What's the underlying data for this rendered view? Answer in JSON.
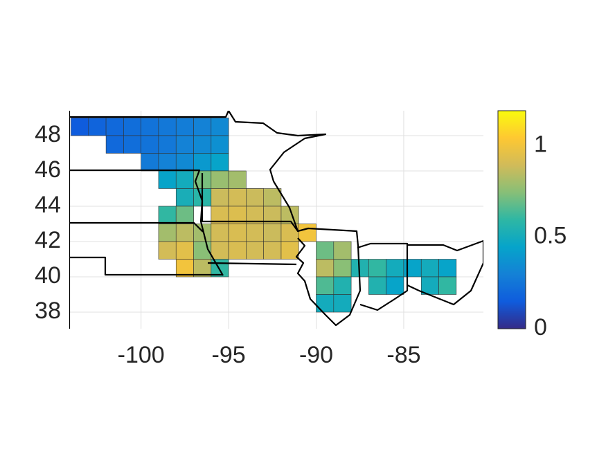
{
  "chart_data": {
    "type": "choropleth",
    "x": [
      -103.5,
      -102.5,
      -101.5,
      -100.5,
      -99.5,
      -98.5,
      -97.5,
      -101.5,
      -100.5,
      -99.5,
      -98.5,
      -97.5,
      -99.5,
      -98.5,
      -97.5,
      -96.5,
      -95.5,
      -96.5,
      -95.5,
      -96.5,
      -95.5,
      -98.5,
      -97.5,
      -97.5,
      -96.5,
      -98.5,
      -97.5,
      -97.5,
      -96.5,
      -95.5,
      -94.5,
      -93.5,
      -92.5,
      -95.5,
      -94.5,
      -93.5,
      -95.5,
      -94.5,
      -93.5,
      -92.5,
      -91.5,
      -98.5,
      -97.5,
      -96.5,
      -98.5,
      -97.5,
      -96.5,
      -97.5,
      -96.5,
      -95.5,
      -95.5,
      -94.5,
      -93.5,
      -92.5,
      -91.5,
      -90.5,
      -95.5,
      -94.5,
      -93.5,
      -92.5,
      -91.5,
      -89.5,
      -88.5,
      -89.5,
      -88.5,
      -89.5,
      -88.5,
      -89.5,
      -88.5,
      -87.5,
      -86.5,
      -85.5,
      -86.5,
      -85.5,
      -84.5,
      -83.5,
      -82.5,
      -83.5,
      -82.5
    ],
    "y": [
      48.5,
      48.5,
      48.5,
      48.5,
      48.5,
      48.5,
      48.5,
      47.5,
      47.5,
      47.5,
      47.5,
      47.5,
      46.5,
      46.5,
      46.5,
      48.5,
      48.5,
      47.5,
      47.5,
      46.5,
      46.5,
      45.5,
      45.5,
      44.5,
      44.5,
      43.5,
      43.5,
      43.5,
      45.5,
      45.5,
      45.5,
      44.5,
      44.5,
      44.5,
      44.5,
      44.5,
      43.5,
      43.5,
      43.5,
      43.5,
      43.5,
      42.5,
      42.5,
      42.5,
      41.5,
      41.5,
      41.5,
      40.5,
      40.5,
      40.5,
      42.5,
      42.5,
      42.5,
      42.5,
      42.5,
      42.5,
      41.5,
      41.5,
      41.5,
      41.5,
      41.5,
      41.5,
      41.5,
      40.5,
      40.5,
      39.5,
      39.5,
      38.5,
      38.5,
      40.5,
      40.5,
      40.5,
      39.5,
      39.5,
      40.5,
      40.5,
      40.5,
      39.5,
      39.5
    ],
    "values": [
      0.15,
      0.18,
      0.2,
      0.22,
      0.24,
      0.26,
      0.28,
      0.2,
      0.22,
      0.24,
      0.26,
      0.3,
      0.27,
      0.3,
      0.33,
      0.3,
      0.33,
      0.33,
      0.36,
      0.4,
      0.45,
      0.45,
      0.5,
      0.52,
      0.58,
      0.6,
      0.62,
      0.7,
      0.72,
      0.78,
      0.8,
      0.82,
      0.85,
      0.88,
      0.9,
      0.88,
      0.92,
      0.93,
      0.9,
      0.88,
      0.85,
      0.8,
      0.85,
      0.8,
      0.9,
      0.95,
      0.75,
      1.0,
      0.85,
      0.6,
      0.9,
      0.92,
      0.9,
      0.88,
      0.92,
      1.0,
      0.9,
      0.92,
      0.9,
      0.9,
      0.95,
      0.7,
      0.8,
      0.85,
      0.75,
      0.65,
      0.55,
      0.5,
      0.5,
      0.55,
      0.6,
      0.5,
      0.55,
      0.45,
      0.45,
      0.5,
      0.45,
      0.5,
      0.6
    ],
    "xlim": [
      -104.1,
      -80.45
    ],
    "ylim": [
      37.06,
      49.41
    ],
    "xticks": [
      -100,
      -95,
      -90,
      -85
    ],
    "yticks": [
      38,
      40,
      42,
      44,
      46,
      48
    ],
    "clim": [
      0,
      1.19
    ],
    "cticks": [
      0,
      0.5,
      1
    ],
    "grid": true,
    "colormap": [
      "#352a87",
      "#0f5cdd",
      "#1481d6",
      "#06a4ca",
      "#2eb7a4",
      "#87bf77",
      "#d1bb59",
      "#fec832",
      "#f9fb0e"
    ]
  }
}
